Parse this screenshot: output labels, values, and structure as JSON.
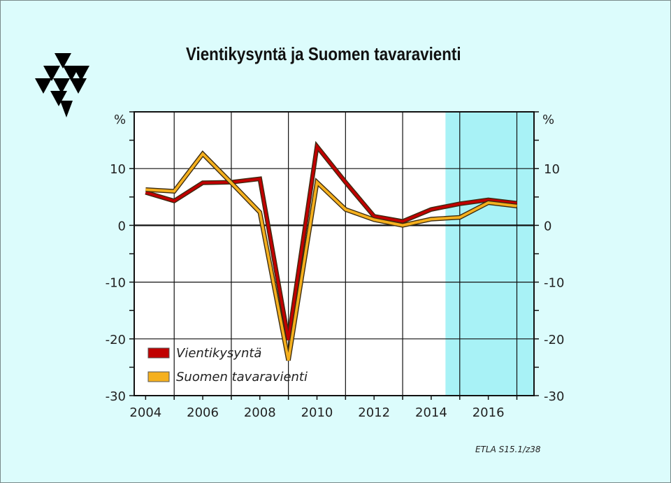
{
  "title": "Vientikysyntä ja Suomen tavaravienti",
  "source": "ETLA S15.1/z38",
  "colors": {
    "background": "#dcfcfc",
    "forecast_band": "#a8f2f6",
    "vientikysynta": "#c00000",
    "tavaravienti": "#f5b01e"
  },
  "chart_data": {
    "type": "line",
    "title": "Vientikysyntä ja Suomen tavaravienti",
    "y_unit_left": "%",
    "y_unit_right": "%",
    "x": [
      2004,
      2005,
      2006,
      2007,
      2008,
      2009,
      2010,
      2011,
      2012,
      2013,
      2014,
      2015,
      2016,
      2017
    ],
    "series": [
      {
        "name": "Vientikysyntä",
        "color": "#c00000",
        "values": [
          5.8,
          4.3,
          7.5,
          7.6,
          8.2,
          -20.2,
          13.9,
          7.6,
          1.6,
          0.7,
          2.8,
          3.8,
          4.5,
          3.9
        ]
      },
      {
        "name": "Suomen tavaravienti",
        "color": "#f5b01e",
        "values": [
          6.3,
          6.0,
          12.6,
          7.5,
          2.3,
          -23.8,
          7.6,
          2.8,
          1.0,
          0.0,
          1.1,
          1.4,
          4.0,
          3.4
        ]
      }
    ],
    "xlim": [
      2003.6,
      2017.6
    ],
    "ylim": [
      -30,
      20
    ],
    "x_ticks": [
      "2004",
      "2006",
      "2008",
      "2010",
      "2012",
      "2014",
      "2016"
    ],
    "y_ticks": [
      "10",
      "0",
      "-10",
      "-20",
      "-30"
    ],
    "forecast_start": 2014.5,
    "grid": true,
    "legend_position": "bottom-left"
  }
}
